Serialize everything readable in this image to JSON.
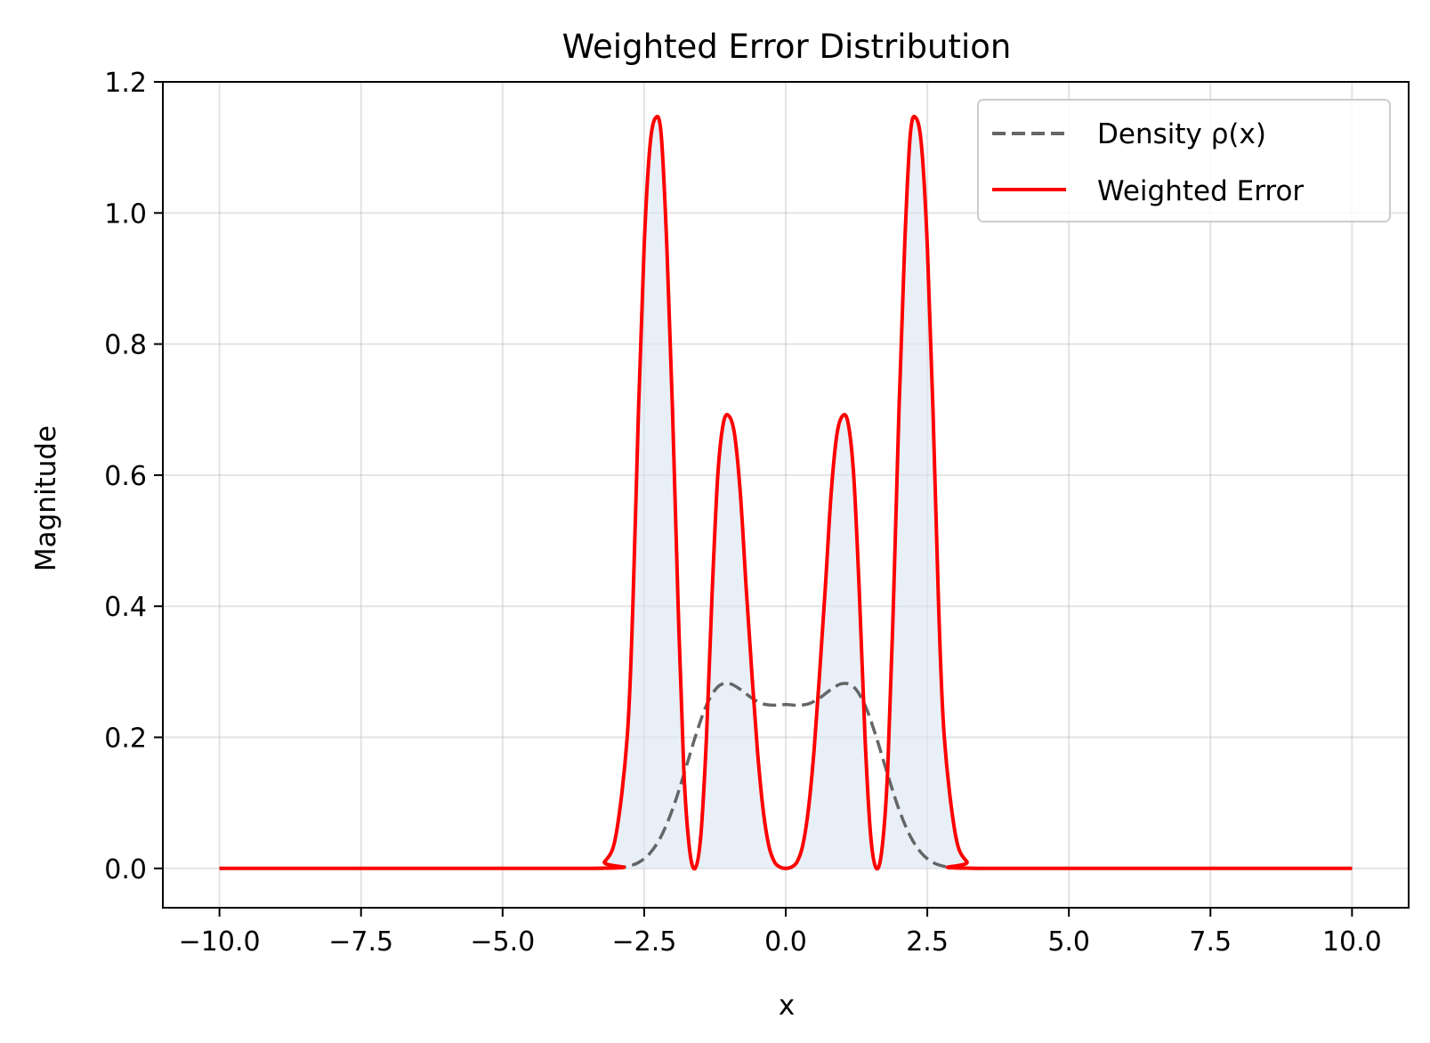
{
  "chart_data": {
    "type": "line",
    "title": "Weighted Error Distribution",
    "xlabel": "x",
    "ylabel": "Magnitude",
    "xlim": [
      -11.0,
      11.0
    ],
    "ylim": [
      -0.06,
      1.2
    ],
    "xticks": [
      -10.0,
      -7.5,
      -5.0,
      -2.5,
      0.0,
      2.5,
      5.0,
      7.5,
      10.0
    ],
    "xtick_labels": [
      "−10.0",
      "−7.5",
      "−5.0",
      "−2.5",
      "0.0",
      "2.5",
      "5.0",
      "7.5",
      "10.0"
    ],
    "yticks": [
      0.0,
      0.2,
      0.4,
      0.6,
      0.8,
      1.0,
      1.2
    ],
    "ytick_labels": [
      "0.0",
      "0.2",
      "0.4",
      "0.6",
      "0.8",
      "1.0",
      "1.2"
    ],
    "grid": true,
    "legend_position": "upper right",
    "series": [
      {
        "name": "Density ρ(x)",
        "style": "dashed",
        "color": "#555555",
        "x": [
          -10.0,
          -3.6,
          -3.4,
          -3.2,
          -3.0,
          -2.8,
          -2.6,
          -2.4,
          -2.2,
          -2.0,
          -1.8,
          -1.6,
          -1.4,
          -1.2,
          -1.0,
          -0.8,
          -0.6,
          -0.4,
          -0.2,
          0.0,
          0.2,
          0.4,
          0.6,
          0.8,
          1.0,
          1.2,
          1.4,
          1.6,
          1.8,
          2.0,
          2.2,
          2.4,
          2.6,
          2.8,
          3.0,
          3.2,
          3.4,
          3.6,
          10.0
        ],
        "y": [
          0.0,
          0.0,
          0.0,
          0.0,
          0.001,
          0.003,
          0.009,
          0.023,
          0.049,
          0.09,
          0.143,
          0.2,
          0.249,
          0.277,
          0.282,
          0.273,
          0.26,
          0.251,
          0.249,
          0.25,
          0.249,
          0.251,
          0.26,
          0.273,
          0.282,
          0.277,
          0.249,
          0.2,
          0.143,
          0.09,
          0.049,
          0.023,
          0.009,
          0.003,
          0.001,
          0.0,
          0.0,
          0.0,
          0.0
        ]
      },
      {
        "name": "Weighted Error",
        "style": "solid",
        "color": "#ff0000",
        "fill": "#dce7f3",
        "x": [
          -10.0,
          -3.4,
          -3.2,
          -3.0,
          -2.8,
          -2.7,
          -2.6,
          -2.5,
          -2.4,
          -2.3,
          -2.2,
          -2.1,
          -2.0,
          -1.9,
          -1.8,
          -1.7,
          -1.6,
          -1.5,
          -1.4,
          -1.3,
          -1.2,
          -1.1,
          -1.0,
          -0.9,
          -0.8,
          -0.7,
          -0.6,
          -0.5,
          -0.4,
          -0.3,
          -0.2,
          -0.1,
          0.0,
          0.1,
          0.2,
          0.3,
          0.4,
          0.5,
          0.6,
          0.7,
          0.8,
          0.9,
          1.0,
          1.1,
          1.2,
          1.3,
          1.4,
          1.5,
          1.6,
          1.7,
          1.8,
          1.9,
          2.0,
          2.1,
          2.2,
          2.3,
          2.4,
          2.5,
          2.6,
          2.7,
          2.8,
          3.0,
          3.2,
          3.4,
          10.0
        ],
        "y": [
          0.0,
          0.0,
          0.01,
          0.05,
          0.2,
          0.4,
          0.7,
          0.95,
          1.1,
          1.145,
          1.12,
          0.95,
          0.7,
          0.4,
          0.15,
          0.03,
          0.0,
          0.05,
          0.2,
          0.42,
          0.6,
          0.68,
          0.69,
          0.66,
          0.57,
          0.43,
          0.3,
          0.18,
          0.09,
          0.035,
          0.01,
          0.002,
          0.0,
          0.002,
          0.01,
          0.035,
          0.09,
          0.18,
          0.3,
          0.43,
          0.57,
          0.66,
          0.69,
          0.68,
          0.6,
          0.42,
          0.2,
          0.05,
          0.0,
          0.03,
          0.15,
          0.4,
          0.7,
          0.95,
          1.12,
          1.145,
          1.1,
          0.95,
          0.7,
          0.4,
          0.2,
          0.05,
          0.01,
          0.0,
          0.0
        ]
      }
    ]
  }
}
